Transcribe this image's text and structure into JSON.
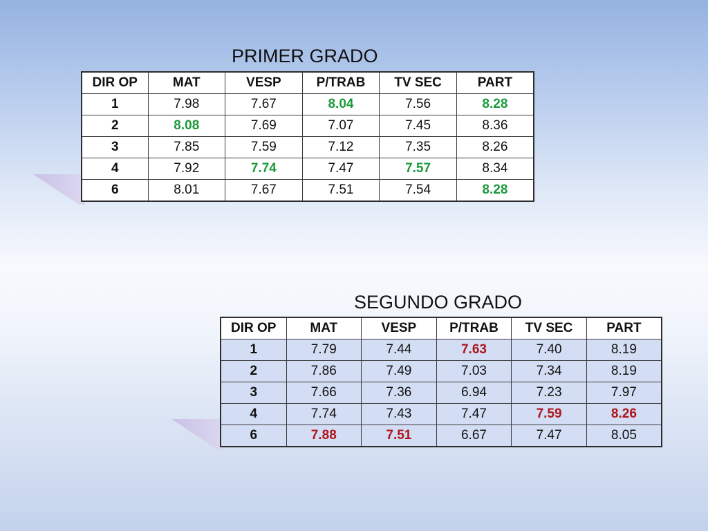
{
  "colors": {
    "highlight_good": "#1a9a3c",
    "highlight_bad": "#b0151b"
  },
  "tables": [
    {
      "title": "PRIMER GRADO",
      "headers": [
        "DIR OP",
        "MAT",
        "VESP",
        "P/TRAB",
        "TV SEC",
        "PART"
      ],
      "rows": [
        {
          "label": "1",
          "values": [
            "7.98",
            "7.67",
            "8.04",
            "7.56",
            "8.28"
          ],
          "highlight": [
            null,
            null,
            "good",
            null,
            "good"
          ]
        },
        {
          "label": "2",
          "values": [
            "8.08",
            "7.69",
            "7.07",
            "7.45",
            "8.36"
          ],
          "highlight": [
            "good",
            null,
            null,
            null,
            null
          ]
        },
        {
          "label": "3",
          "values": [
            "7.85",
            "7.59",
            "7.12",
            "7.35",
            "8.26"
          ],
          "highlight": [
            null,
            null,
            null,
            null,
            null
          ]
        },
        {
          "label": "4",
          "values": [
            "7.92",
            "7.74",
            "7.47",
            "7.57",
            "8.34"
          ],
          "highlight": [
            null,
            "good",
            null,
            "good",
            null
          ]
        },
        {
          "label": "6",
          "values": [
            "8.01",
            "7.67",
            "7.51",
            "7.54",
            "8.28"
          ],
          "highlight": [
            null,
            null,
            null,
            null,
            "good"
          ]
        }
      ]
    },
    {
      "title": "SEGUNDO GRADO",
      "headers": [
        "DIR OP",
        "MAT",
        "VESP",
        "P/TRAB",
        "TV SEC",
        "PART"
      ],
      "rows": [
        {
          "label": "1",
          "values": [
            "7.79",
            "7.44",
            "7.63",
            "7.40",
            "8.19"
          ],
          "highlight": [
            null,
            null,
            "bad",
            null,
            null
          ]
        },
        {
          "label": "2",
          "values": [
            "7.86",
            "7.49",
            "7.03",
            "7.34",
            "8.19"
          ],
          "highlight": [
            null,
            null,
            null,
            null,
            null
          ]
        },
        {
          "label": "3",
          "values": [
            "7.66",
            "7.36",
            "6.94",
            "7.23",
            "7.97"
          ],
          "highlight": [
            null,
            null,
            null,
            null,
            null
          ]
        },
        {
          "label": "4",
          "values": [
            "7.74",
            "7.43",
            "7.47",
            "7.59",
            "8.26"
          ],
          "highlight": [
            null,
            null,
            null,
            "bad",
            "bad"
          ]
        },
        {
          "label": "6",
          "values": [
            "7.88",
            "7.51",
            "6.67",
            "7.47",
            "8.05"
          ],
          "highlight": [
            "bad",
            "bad",
            null,
            null,
            null
          ]
        }
      ]
    }
  ]
}
